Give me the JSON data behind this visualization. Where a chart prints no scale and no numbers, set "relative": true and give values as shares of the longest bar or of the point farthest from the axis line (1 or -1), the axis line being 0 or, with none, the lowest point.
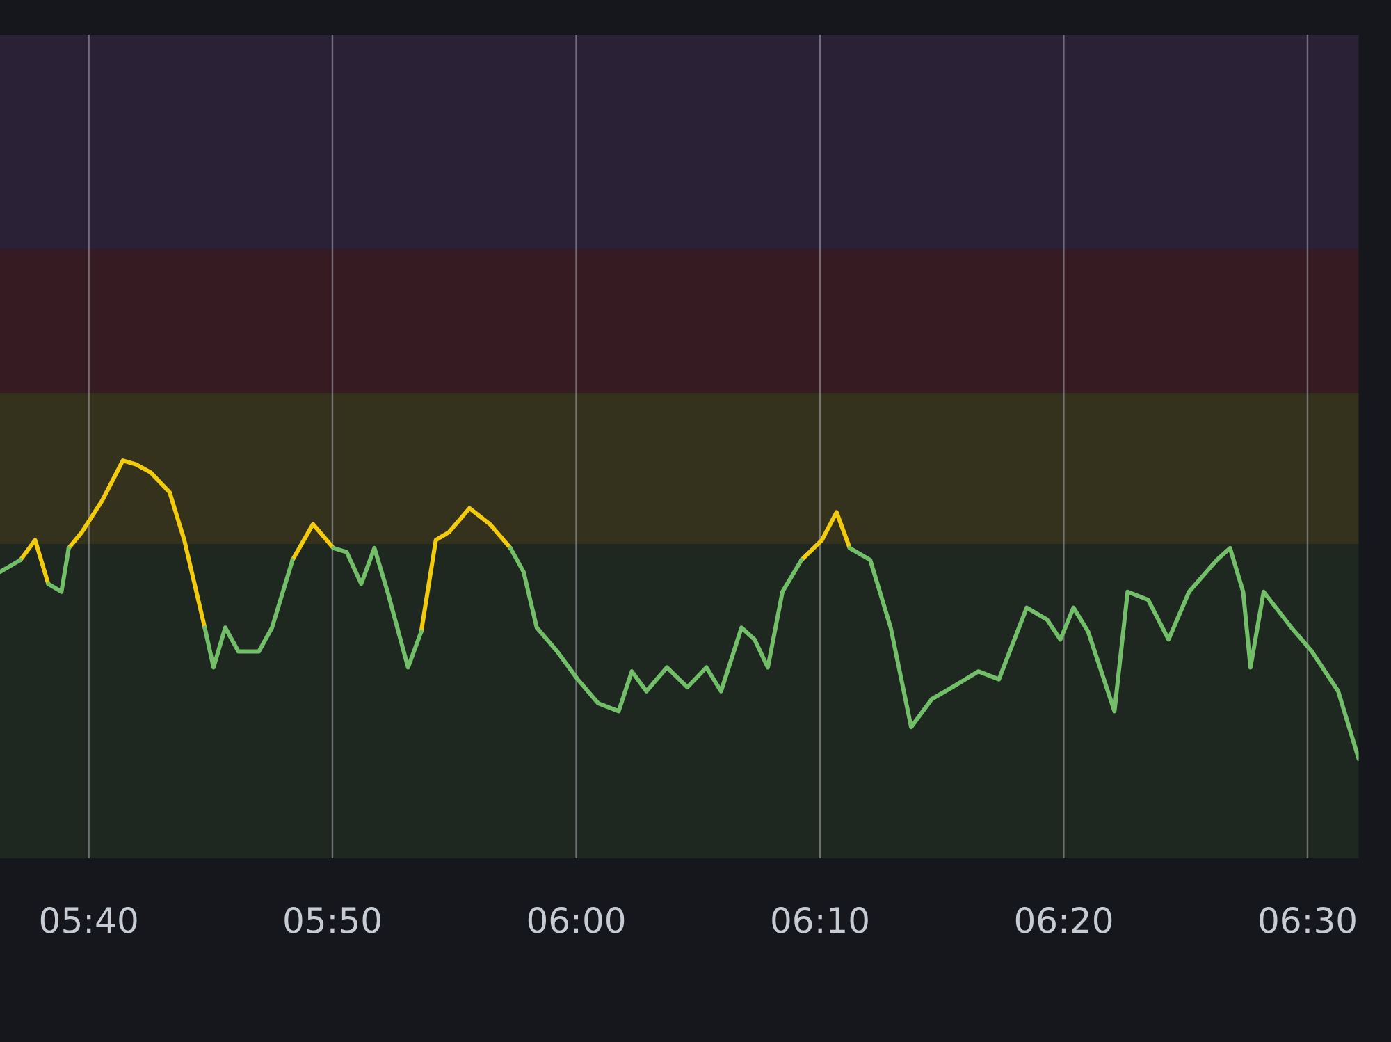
{
  "chart_data": {
    "type": "line",
    "relative": true,
    "x": [
      5.606,
      5.62,
      5.63,
      5.639,
      5.648,
      5.653,
      5.662,
      5.676,
      5.69,
      5.699,
      5.709,
      5.722,
      5.732,
      5.746,
      5.752,
      5.76,
      5.769,
      5.783,
      5.792,
      5.806,
      5.82,
      5.834,
      5.843,
      5.853,
      5.862,
      5.871,
      5.885,
      5.894,
      5.904,
      5.913,
      5.927,
      5.941,
      5.955,
      5.964,
      5.973,
      5.987,
      6.001,
      6.015,
      6.029,
      6.038,
      6.048,
      6.062,
      6.076,
      6.089,
      6.099,
      6.113,
      6.122,
      6.131,
      6.141,
      6.154,
      6.168,
      6.178,
      6.187,
      6.201,
      6.215,
      6.229,
      6.243,
      6.257,
      6.275,
      6.289,
      6.308,
      6.322,
      6.331,
      6.34,
      6.35,
      6.368,
      6.377,
      6.391,
      6.405,
      6.419,
      6.438,
      6.447,
      6.456,
      6.461,
      6.47,
      6.489,
      6.503,
      6.521,
      6.535
    ],
    "series": [
      {
        "color": "#73bf69",
        "values": [
          0.72,
          0.75,
          null,
          0.69,
          0.67,
          0.78,
          null,
          null,
          null,
          null,
          null,
          null,
          null,
          0.58,
          0.48,
          0.58,
          0.52,
          0.52,
          0.58,
          0.75,
          null,
          0.78,
          0.77,
          0.69,
          0.78,
          0.67,
          0.48,
          0.57,
          null,
          null,
          null,
          null,
          0.78,
          0.72,
          0.58,
          0.52,
          0.45,
          0.39,
          0.37,
          0.47,
          0.42,
          0.48,
          0.43,
          0.48,
          0.42,
          0.58,
          0.55,
          0.48,
          0.67,
          0.75,
          null,
          null,
          0.78,
          0.75,
          0.58,
          0.33,
          0.4,
          0.43,
          0.47,
          0.45,
          0.63,
          0.6,
          0.55,
          0.63,
          0.57,
          0.37,
          0.67,
          0.65,
          0.55,
          0.67,
          0.75,
          0.78,
          0.67,
          0.48,
          0.67,
          0.58,
          0.52,
          0.42,
          0.25
        ]
      },
      {
        "color": "#f2cc0c",
        "values": [
          null,
          0.75,
          0.8,
          0.69,
          null,
          0.78,
          0.82,
          0.9,
          1,
          0.99,
          0.97,
          0.92,
          0.8,
          0.58,
          null,
          null,
          null,
          null,
          null,
          0.75,
          0.84,
          0.78,
          null,
          null,
          null,
          null,
          null,
          0.57,
          0.8,
          0.82,
          0.88,
          0.84,
          0.78,
          null,
          null,
          null,
          null,
          null,
          null,
          null,
          null,
          null,
          null,
          null,
          null,
          null,
          null,
          null,
          null,
          0.75,
          0.8,
          0.87,
          0.78,
          null,
          null,
          null,
          null,
          null,
          null,
          null,
          null,
          null,
          null,
          null,
          null,
          null,
          null,
          null,
          null,
          null,
          null,
          null,
          null,
          null,
          null,
          null,
          null,
          null,
          null
        ]
      }
    ],
    "xlim": [
      5.606,
      6.535
    ],
    "xticks": [
      {
        "value": 5.6667,
        "label": "05:40"
      },
      {
        "value": 5.8333,
        "label": "05:50"
      },
      {
        "value": 6,
        "label": "06:00"
      },
      {
        "value": 6.1667,
        "label": "06:10"
      },
      {
        "value": 6.3333,
        "label": "06:20"
      },
      {
        "value": 6.5,
        "label": "06:30"
      }
    ],
    "bands": [
      {
        "axis": "y",
        "from": 0,
        "to": 0.79,
        "label": null,
        "color": "#1e2820"
      },
      {
        "axis": "y",
        "from": 0.79,
        "to": 1.17,
        "label": null,
        "color": "#34311c"
      },
      {
        "axis": "y",
        "from": 1.17,
        "to": 1.53,
        "label": null,
        "color": "#371b22"
      },
      {
        "axis": "y",
        "from": 1.53,
        "to": 2.07,
        "label": null,
        "color": "#2a2136"
      }
    ],
    "grid": "x",
    "legend": false,
    "tick_labels": "x",
    "marker": "none",
    "line_style": "solid"
  }
}
